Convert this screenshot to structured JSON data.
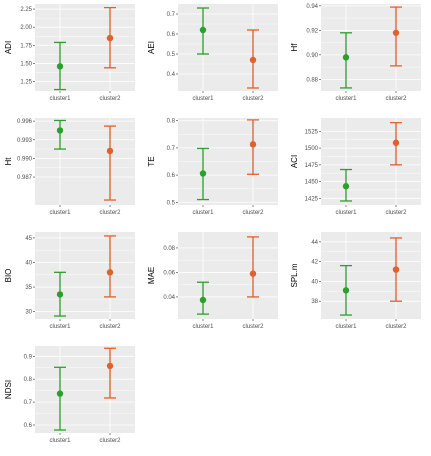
{
  "colors": {
    "cluster1": "#2ca02c",
    "cluster2": "#e1602c",
    "panel_bg": "#ebebeb",
    "grid": "#ffffff"
  },
  "chart_data": [
    {
      "type": "scatter",
      "ylabel": "ADI",
      "categories": [
        "cluster1",
        "cluster2"
      ],
      "ylim": [
        1.12,
        2.32
      ],
      "yticks": [
        "1.25",
        "1.50",
        "1.75",
        "2.00",
        "2.25"
      ],
      "points": [
        {
          "mean": 1.46,
          "lower": 1.14,
          "upper": 1.79
        },
        {
          "mean": 1.85,
          "lower": 1.44,
          "upper": 2.27
        }
      ]
    },
    {
      "type": "scatter",
      "ylabel": "AEI",
      "categories": [
        "cluster1",
        "cluster2"
      ],
      "ylim": [
        0.315,
        0.75
      ],
      "yticks": [
        "0.4",
        "0.5",
        "0.6",
        "0.7"
      ],
      "points": [
        {
          "mean": 0.62,
          "lower": 0.5,
          "upper": 0.73
        },
        {
          "mean": 0.47,
          "lower": 0.33,
          "upper": 0.62
        }
      ]
    },
    {
      "type": "scatter",
      "ylabel": "Hf",
      "categories": [
        "cluster1",
        "cluster2"
      ],
      "ylim": [
        0.8705,
        0.9415
      ],
      "yticks": [
        "0.88",
        "0.90",
        "0.92",
        "0.94"
      ],
      "points": [
        {
          "mean": 0.898,
          "lower": 0.873,
          "upper": 0.918
        },
        {
          "mean": 0.918,
          "lower": 0.891,
          "upper": 0.939
        }
      ]
    },
    {
      "type": "scatter",
      "ylabel": "Ht",
      "categories": [
        "cluster1",
        "cluster2"
      ],
      "ylim": [
        0.9825,
        0.9965
      ],
      "yticks": [
        "0.987",
        "0.990",
        "0.993",
        "0.996"
      ],
      "points": [
        {
          "mean": 0.9945,
          "lower": 0.9915,
          "upper": 0.9961
        },
        {
          "mean": 0.9912,
          "lower": 0.9833,
          "upper": 0.9952
        }
      ]
    },
    {
      "type": "scatter",
      "ylabel": "TE",
      "categories": [
        "cluster1",
        "cluster2"
      ],
      "ylim": [
        0.49,
        0.81
      ],
      "yticks": [
        "0.5",
        "0.6",
        "0.7",
        "0.8"
      ],
      "points": [
        {
          "mean": 0.606,
          "lower": 0.51,
          "upper": 0.698
        },
        {
          "mean": 0.713,
          "lower": 0.603,
          "upper": 0.803
        }
      ]
    },
    {
      "type": "scatter",
      "ylabel": "ACI",
      "categories": [
        "cluster1",
        "cluster2"
      ],
      "ylim": [
        1415,
        1545
      ],
      "yticks": [
        "1425",
        "1450",
        "1475",
        "1500",
        "1525"
      ],
      "points": [
        {
          "mean": 1443,
          "lower": 1421,
          "upper": 1468
        },
        {
          "mean": 1508,
          "lower": 1475,
          "upper": 1538
        }
      ]
    },
    {
      "type": "scatter",
      "ylabel": "BIO",
      "categories": [
        "cluster1",
        "cluster2"
      ],
      "ylim": [
        28.5,
        46.2
      ],
      "yticks": [
        "30",
        "35",
        "40",
        "45"
      ],
      "points": [
        {
          "mean": 33.5,
          "lower": 29.1,
          "upper": 38.0
        },
        {
          "mean": 38.0,
          "lower": 33.0,
          "upper": 45.4
        }
      ]
    },
    {
      "type": "scatter",
      "ylabel": "MAE",
      "categories": [
        "cluster1",
        "cluster2"
      ],
      "ylim": [
        0.022,
        0.093
      ],
      "yticks": [
        "0.04",
        "0.06",
        "0.08"
      ],
      "points": [
        {
          "mean": 0.0375,
          "lower": 0.026,
          "upper": 0.052
        },
        {
          "mean": 0.059,
          "lower": 0.04,
          "upper": 0.089
        }
      ]
    },
    {
      "type": "scatter",
      "ylabel": "SPL.m",
      "categories": [
        "cluster1",
        "cluster2"
      ],
      "ylim": [
        36.2,
        45.0
      ],
      "yticks": [
        "38",
        "40",
        "42",
        "44"
      ],
      "points": [
        {
          "mean": 39.1,
          "lower": 36.6,
          "upper": 41.6
        },
        {
          "mean": 41.2,
          "lower": 38.0,
          "upper": 44.4
        }
      ]
    },
    {
      "type": "scatter",
      "ylabel": "NDSI",
      "categories": [
        "cluster1",
        "cluster2"
      ],
      "ylim": [
        0.565,
        0.945
      ],
      "yticks": [
        "0.6",
        "0.7",
        "0.8",
        "0.9"
      ],
      "points": [
        {
          "mean": 0.737,
          "lower": 0.578,
          "upper": 0.852
        },
        {
          "mean": 0.858,
          "lower": 0.718,
          "upper": 0.935
        }
      ]
    }
  ]
}
